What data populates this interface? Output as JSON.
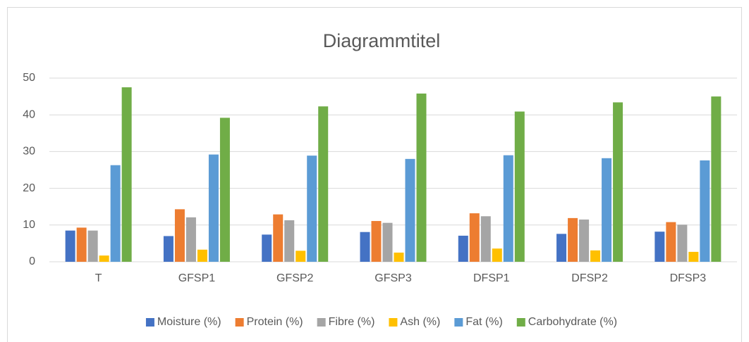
{
  "chart_data": {
    "type": "bar",
    "title": "Diagrammtitel",
    "categories": [
      "T",
      "GFSP1",
      "GFSP2",
      "GFSP3",
      "DFSP1",
      "DFSP2",
      "DFSP3"
    ],
    "series": [
      {
        "name": "Moisture (%)",
        "color": "#4472c4",
        "values": [
          8.5,
          7.0,
          7.4,
          8.1,
          7.1,
          7.6,
          8.2
        ]
      },
      {
        "name": "Protein (%)",
        "color": "#ed7d31",
        "values": [
          9.3,
          14.3,
          12.9,
          11.1,
          13.2,
          11.9,
          10.8
        ]
      },
      {
        "name": "Fibre (%)",
        "color": "#a5a5a5",
        "values": [
          8.5,
          12.1,
          11.3,
          10.6,
          12.4,
          11.5,
          10.1
        ]
      },
      {
        "name": "Ash (%)",
        "color": "#ffc000",
        "values": [
          1.7,
          3.3,
          3.0,
          2.5,
          3.6,
          3.1,
          2.7
        ]
      },
      {
        "name": "Fat (%)",
        "color": "#5b9bd5",
        "values": [
          26.3,
          29.2,
          28.9,
          28.0,
          29.0,
          28.2,
          27.6
        ]
      },
      {
        "name": "Carbohydrate (%)",
        "color": "#70ad47",
        "values": [
          47.5,
          39.2,
          42.3,
          45.8,
          40.9,
          43.4,
          45.0
        ]
      }
    ],
    "ylim": [
      0,
      50
    ],
    "yticks": [
      0,
      10,
      20,
      30,
      40,
      50
    ],
    "grid": true,
    "legend": "bottom"
  }
}
